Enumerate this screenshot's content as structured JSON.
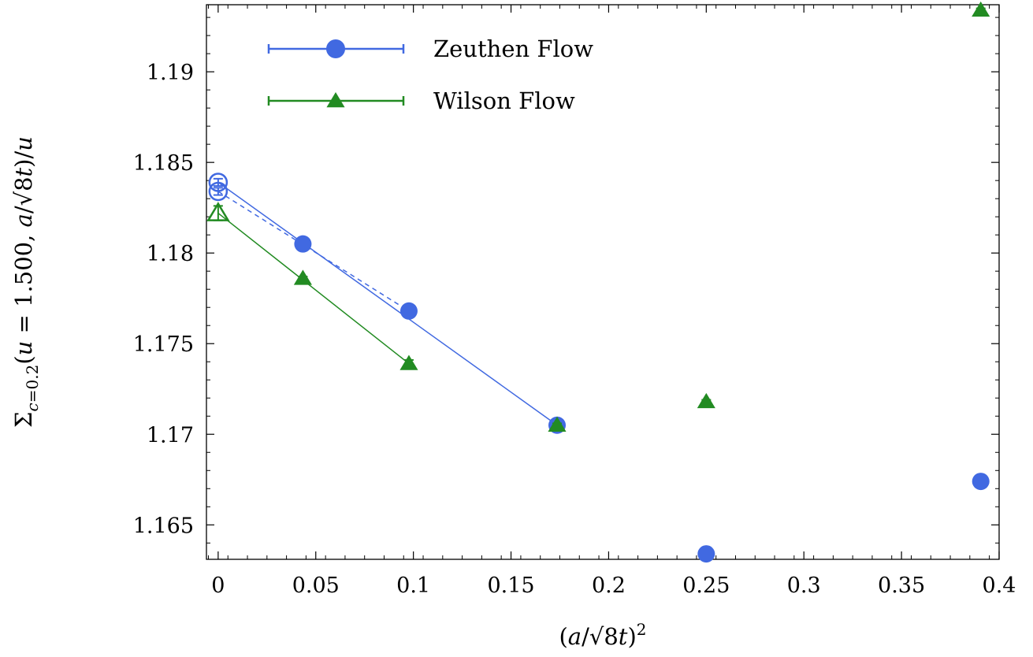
{
  "chart_data": {
    "type": "scatter",
    "xlabel": "(a/√8t)²",
    "ylabel": "Σc=0.2(u = 1.500, a/√8t)/u",
    "xlim": [
      -0.006,
      0.4
    ],
    "ylim": [
      1.1631,
      1.1937
    ],
    "x_ticks": [
      0,
      0.05,
      0.1,
      0.15,
      0.2,
      0.25,
      0.3,
      0.35,
      0.4
    ],
    "x_tick_labels": [
      "0",
      "0.05",
      "0.1",
      "0.15",
      "0.2",
      "0.25",
      "0.3",
      "0.35",
      "0.4"
    ],
    "y_ticks": [
      1.165,
      1.17,
      1.175,
      1.18,
      1.185,
      1.19
    ],
    "y_tick_labels": [
      "1.165",
      "1.17",
      "1.175",
      "1.18",
      "1.185",
      "1.19"
    ],
    "legend_position": "top-left",
    "grid": false,
    "series": [
      {
        "name": "Zeuthen Flow",
        "color": "#4169e1",
        "marker": "circle",
        "points": [
          {
            "x": 0.0434,
            "y": 1.1805,
            "err": 0.0001
          },
          {
            "x": 0.0977,
            "y": 1.1768,
            "err": 0.0001
          },
          {
            "x": 0.1736,
            "y": 1.1705,
            "err": 0.0001
          },
          {
            "x": 0.25,
            "y": 1.1634,
            "err": 0.0001
          },
          {
            "x": 0.3906,
            "y": 1.1674,
            "err": 0.0001
          }
        ],
        "extrapolations": [
          {
            "x": 0,
            "y": 1.1839,
            "err": 0.0002,
            "fit_to_x": 0.1736,
            "fit_to_y": 1.1705,
            "dashed": false
          },
          {
            "x": 0,
            "y": 1.1834,
            "err": 0.0002,
            "fit_to_x": 0.0977,
            "fit_to_y": 1.1768,
            "dashed": true
          }
        ]
      },
      {
        "name": "Wilson Flow",
        "color": "#228b22",
        "marker": "triangle",
        "points": [
          {
            "x": 0.0434,
            "y": 1.1786,
            "err": 0.0001
          },
          {
            "x": 0.0977,
            "y": 1.1739,
            "err": 0.0002
          },
          {
            "x": 0.1736,
            "y": 1.1705,
            "err": 0.0001
          },
          {
            "x": 0.25,
            "y": 1.1718,
            "err": 0.0001
          },
          {
            "x": 0.3906,
            "y": 1.1934,
            "err": 0.0001
          }
        ],
        "extrapolations": [
          {
            "x": 0,
            "y": 1.1822,
            "err": 0.0004,
            "fit_to_x": 0.0977,
            "fit_to_y": 1.1739,
            "dashed": false
          }
        ]
      }
    ]
  }
}
